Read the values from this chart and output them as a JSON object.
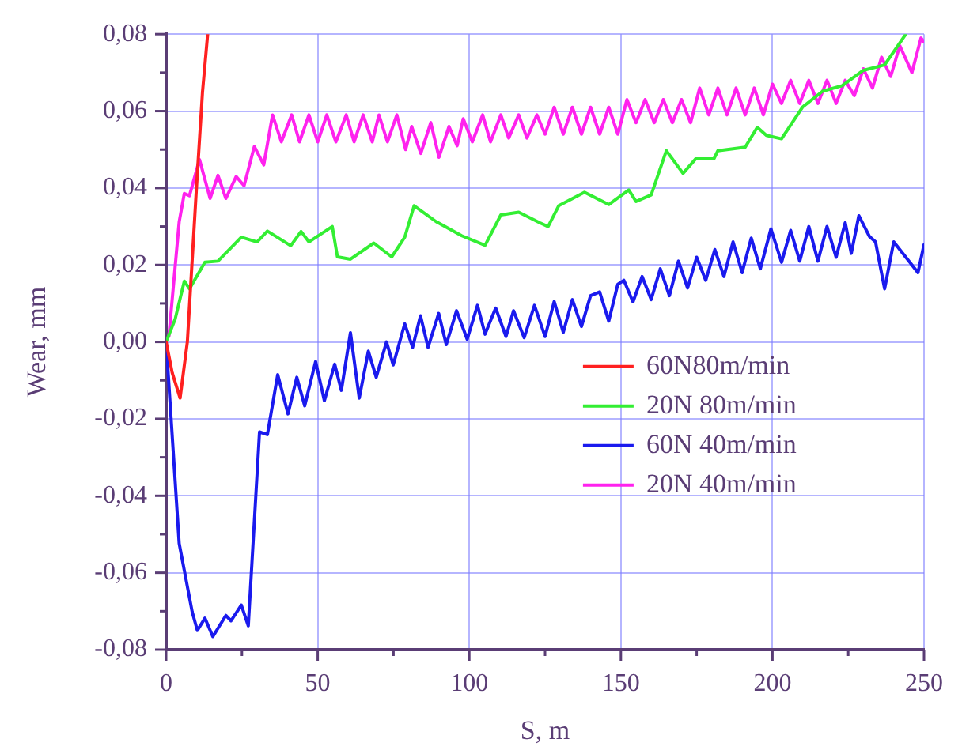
{
  "chart_data": {
    "type": "line",
    "xlabel": "S, m",
    "ylabel": "Wear, mm",
    "xlim": [
      0,
      250
    ],
    "ylim": [
      -0.08,
      0.08
    ],
    "xticks": [
      0,
      {
        "value": 25,
        "label": null
      },
      50,
      {
        "value": 75,
        "label": null
      },
      100,
      {
        "value": 125,
        "label": null
      },
      150,
      {
        "value": 175,
        "label": null
      },
      200,
      {
        "value": 225,
        "label": null
      },
      250
    ],
    "yticks": [
      {
        "value": -0.08,
        "label": "-0,08"
      },
      {
        "value": -0.07,
        "label": null
      },
      {
        "value": -0.06,
        "label": "-0,06"
      },
      {
        "value": -0.05,
        "label": null
      },
      {
        "value": -0.04,
        "label": "-0,04"
      },
      {
        "value": -0.03,
        "label": null
      },
      {
        "value": -0.02,
        "label": "-0,02"
      },
      {
        "value": -0.01,
        "label": null
      },
      {
        "value": 0,
        "label": "0,00"
      },
      {
        "value": 0.01,
        "label": null
      },
      {
        "value": 0.02,
        "label": "0,02"
      },
      {
        "value": 0.03,
        "label": null
      },
      {
        "value": 0.04,
        "label": "0,04"
      },
      {
        "value": 0.05,
        "label": null
      },
      {
        "value": 0.06,
        "label": "0,06"
      },
      {
        "value": 0.07,
        "label": null
      },
      {
        "value": 0.08,
        "label": "0,08"
      }
    ],
    "grid": true,
    "legend": "right",
    "marker": "none",
    "line_style": "solid",
    "series": [
      {
        "name": "60N80m/min",
        "color": "#ff2020",
        "x": [
          0,
          2,
          4.6,
          7,
          10,
          12,
          13.7
        ],
        "values": [
          0,
          -0.008,
          -0.0146,
          0,
          0.04,
          0.065,
          0.08
        ]
      },
      {
        "name": "20N 80m/min",
        "color": "#33ee33",
        "x": [
          0,
          3,
          6,
          7.7,
          12.8,
          17.1,
          24.8,
          30,
          33.4,
          41.1,
          44.5,
          47.1,
          54.8,
          56.5,
          60.8,
          68.5,
          74.4,
          78.7,
          81.8,
          89,
          97.5,
          105.2,
          110.4,
          116.3,
          123.2,
          126,
          129.5,
          138,
          146,
          152.6,
          155,
          160,
          165,
          170.5,
          174.7,
          180.7,
          182,
          191,
          195,
          198,
          203,
          210,
          216.6,
          223,
          230,
          237,
          244
        ],
        "values": [
          0,
          0.006,
          0.0158,
          0.0138,
          0.0207,
          0.021,
          0.0272,
          0.026,
          0.0288,
          0.025,
          0.0287,
          0.026,
          0.03,
          0.0221,
          0.0215,
          0.0257,
          0.0221,
          0.0272,
          0.0354,
          0.0313,
          0.0276,
          0.0251,
          0.033,
          0.0337,
          0.031,
          0.03,
          0.0354,
          0.0389,
          0.0357,
          0.0395,
          0.0365,
          0.0382,
          0.0497,
          0.0438,
          0.0476,
          0.0476,
          0.0497,
          0.0506,
          0.0558,
          0.0537,
          0.0528,
          0.0611,
          0.0652,
          0.0666,
          0.0706,
          0.072,
          0.08
        ]
      },
      {
        "name": "60N 40m/min",
        "color": "#1a1aee",
        "x": [
          0,
          4.3,
          8.6,
          10.3,
          12.8,
          15.4,
          19.7,
          21.4,
          24.8,
          27.1,
          30.8,
          33.4,
          36.8,
          40.2,
          43.1,
          45.7,
          49.3,
          52.2,
          55.6,
          57.8,
          60.8,
          63.7,
          66.7,
          69.3,
          72.7,
          74.9,
          78.7,
          81.3,
          83.9,
          86.4,
          89.9,
          92.4,
          95.8,
          99.3,
          102.7,
          105.2,
          108.7,
          112.1,
          114.6,
          118.1,
          121.5,
          125,
          128,
          131,
          134,
          137,
          140,
          143,
          146,
          149,
          151,
          154,
          157,
          160,
          163,
          166,
          169,
          172,
          175,
          178,
          181,
          184,
          187,
          190,
          193,
          196,
          199.5,
          203,
          206,
          209,
          212,
          215,
          218,
          221,
          224,
          226,
          228.5,
          232,
          234,
          237,
          240,
          244,
          248,
          250
        ],
        "values": [
          0,
          -0.0524,
          -0.0702,
          -0.075,
          -0.0718,
          -0.0766,
          -0.0711,
          -0.0725,
          -0.0684,
          -0.0738,
          -0.0234,
          -0.0241,
          -0.0085,
          -0.0187,
          -0.0092,
          -0.0166,
          -0.0051,
          -0.0153,
          -0.0058,
          -0.0126,
          0.0024,
          -0.0146,
          -0.0024,
          -0.0092,
          0,
          -0.006,
          0.0047,
          -0.0014,
          0.0068,
          -0.0014,
          0.0074,
          -0.0007,
          0.0081,
          0.0007,
          0.0095,
          0.002,
          0.0088,
          0.0014,
          0.0081,
          0.0011,
          0.0095,
          0.0014,
          0.0105,
          0.0025,
          0.011,
          0.004,
          0.012,
          0.013,
          0.0054,
          0.015,
          0.016,
          0.0104,
          0.017,
          0.011,
          0.019,
          0.012,
          0.021,
          0.014,
          0.022,
          0.016,
          0.024,
          0.017,
          0.026,
          0.018,
          0.027,
          0.019,
          0.0294,
          0.0207,
          0.029,
          0.021,
          0.03,
          0.021,
          0.03,
          0.022,
          0.031,
          0.023,
          0.0328,
          0.0274,
          0.026,
          0.0138,
          0.026,
          0.022,
          0.018,
          0.0253
        ]
      },
      {
        "name": "20N 40m/min",
        "color": "#ff22ee",
        "x": [
          0.9,
          4.3,
          6,
          7.7,
          11,
          14.5,
          17.1,
          19.7,
          23.1,
          25.7,
          29.1,
          32.2,
          35.1,
          38,
          41.4,
          44,
          47.1,
          50,
          53,
          56,
          59.4,
          62,
          65,
          68,
          70.2,
          73,
          76.1,
          79,
          81,
          84,
          87.3,
          90,
          93.3,
          96,
          98,
          101,
          104.4,
          107,
          110.4,
          113,
          116.3,
          119,
          122.3,
          125,
          128,
          131,
          134,
          137,
          140,
          143,
          146,
          149,
          152,
          155,
          158,
          161,
          164,
          167,
          170,
          173,
          176,
          179,
          182,
          185,
          188,
          191,
          194,
          197,
          200,
          203,
          206,
          209,
          212,
          215,
          218,
          221,
          224,
          227,
          230,
          233,
          236,
          239,
          242,
          246,
          249,
          250
        ],
        "values": [
          0.0014,
          0.0312,
          0.0386,
          0.038,
          0.0474,
          0.0373,
          0.0433,
          0.0373,
          0.043,
          0.0406,
          0.0508,
          0.046,
          0.059,
          0.052,
          0.059,
          0.052,
          0.059,
          0.052,
          0.059,
          0.052,
          0.059,
          0.052,
          0.059,
          0.052,
          0.059,
          0.052,
          0.059,
          0.05,
          0.056,
          0.049,
          0.057,
          0.048,
          0.056,
          0.051,
          0.058,
          0.052,
          0.059,
          0.052,
          0.059,
          0.053,
          0.059,
          0.053,
          0.059,
          0.054,
          0.061,
          0.054,
          0.061,
          0.054,
          0.061,
          0.054,
          0.061,
          0.054,
          0.063,
          0.057,
          0.063,
          0.057,
          0.063,
          0.057,
          0.063,
          0.057,
          0.066,
          0.059,
          0.066,
          0.059,
          0.066,
          0.059,
          0.066,
          0.059,
          0.067,
          0.062,
          0.068,
          0.062,
          0.068,
          0.062,
          0.068,
          0.062,
          0.068,
          0.064,
          0.071,
          0.066,
          0.074,
          0.069,
          0.077,
          0.07,
          0.079,
          0.078
        ]
      }
    ]
  }
}
